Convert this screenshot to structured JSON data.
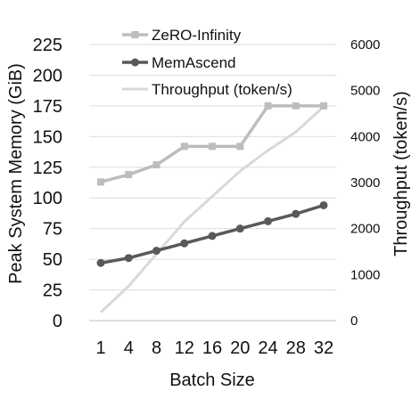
{
  "chart_data": {
    "type": "line",
    "title": "",
    "xlabel": "Batch Size",
    "ylabel": "Peak System Memory (GiB)",
    "y2label": "Throughput (token/s)",
    "categories": [
      "1",
      "4",
      "8",
      "12",
      "16",
      "20",
      "24",
      "28",
      "32"
    ],
    "ylim": [
      0,
      225
    ],
    "yticks": [
      0,
      25,
      50,
      75,
      100,
      125,
      150,
      175,
      200,
      225
    ],
    "y2lim": [
      0,
      6000
    ],
    "y2ticks": [
      0,
      1000,
      2000,
      3000,
      4000,
      5000,
      6000
    ],
    "grid": "horizontal",
    "legend": "top-left",
    "series": [
      {
        "name": "ZeRO-Infinity",
        "axis": "left",
        "marker": "square",
        "color": "#bdbdbd",
        "values": [
          113,
          119,
          127,
          142,
          142,
          142,
          175,
          175,
          175
        ]
      },
      {
        "name": "MemAscend",
        "axis": "left",
        "marker": "circle",
        "color": "#595959",
        "values": [
          47,
          51,
          57,
          63,
          69,
          75,
          81,
          87,
          94
        ]
      },
      {
        "name": "Throughput (token/s)",
        "axis": "right",
        "marker": "none",
        "color": "#d9d9d9",
        "values": [
          180,
          750,
          1450,
          2150,
          2700,
          3250,
          3700,
          4100,
          4650
        ]
      }
    ]
  }
}
